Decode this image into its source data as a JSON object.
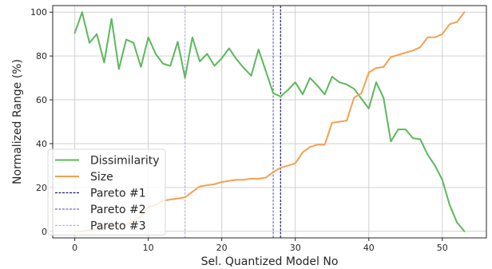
{
  "chart_data": {
    "type": "line",
    "xlabel": "Sel. Quantized Model No",
    "ylabel": "Normalized Range (%)",
    "xlim": [
      -3,
      56
    ],
    "ylim": [
      -3,
      103
    ],
    "xticks": [
      0,
      10,
      20,
      30,
      40,
      50
    ],
    "yticks": [
      0,
      20,
      40,
      60,
      80,
      100
    ],
    "grid": true,
    "legend_position": "bottom-left",
    "series": [
      {
        "name": "Dissimilarity",
        "color": "#5cb85c",
        "x": [
          0,
          1,
          2,
          3,
          4,
          5,
          6,
          7,
          8,
          9,
          10,
          11,
          12,
          13,
          14,
          15,
          16,
          17,
          18,
          19,
          20,
          21,
          22,
          23,
          24,
          25,
          26,
          27,
          28,
          29,
          30,
          31,
          32,
          33,
          34,
          35,
          36,
          37,
          38,
          39,
          40,
          41,
          42,
          43,
          44,
          45,
          46,
          47,
          48,
          49,
          50,
          51,
          52,
          53
        ],
        "values": [
          90.5,
          100,
          86,
          90,
          77,
          97,
          74,
          87.5,
          86,
          75,
          88.5,
          81,
          76.5,
          75.5,
          86.5,
          70,
          88.5,
          77.5,
          81,
          75.5,
          79,
          83.5,
          78.5,
          74.5,
          71,
          83,
          73,
          63,
          61.5,
          64.5,
          68,
          62.5,
          70,
          66.5,
          62.5,
          70.5,
          68,
          67,
          65,
          60.5,
          56,
          68,
          61,
          41,
          46.5,
          46.5,
          42.5,
          42,
          35,
          30,
          23.5,
          12,
          4,
          0
        ]
      },
      {
        "name": "Size",
        "color": "#f5a051",
        "x": [
          0,
          1,
          2,
          3,
          4,
          5,
          6,
          7,
          8,
          9,
          10,
          11,
          12,
          13,
          14,
          15,
          16,
          17,
          18,
          19,
          20,
          21,
          22,
          23,
          24,
          25,
          26,
          27,
          28,
          29,
          30,
          31,
          32,
          33,
          34,
          35,
          36,
          37,
          38,
          39,
          40,
          41,
          42,
          43,
          44,
          45,
          46,
          47,
          48,
          49,
          50,
          51,
          52,
          53
        ],
        "values": [
          0,
          0,
          0.5,
          1,
          1.5,
          2,
          2.5,
          3,
          5,
          7,
          11,
          12,
          14,
          14.5,
          15,
          15.5,
          18,
          20.5,
          21,
          21.5,
          22.5,
          23,
          23.5,
          23.5,
          24,
          24,
          24.5,
          27,
          29,
          30,
          31,
          36,
          38.5,
          39.5,
          39.5,
          49.5,
          50,
          50.5,
          61,
          63,
          72.5,
          74.5,
          75,
          79.5,
          80.5,
          81.5,
          82.5,
          84,
          88.5,
          88.5,
          90,
          94.5,
          95.5,
          100
        ]
      }
    ],
    "vlines": [
      {
        "name": "Pareto #1",
        "x": 28,
        "color": "#1f1f6e",
        "dash": "dense"
      },
      {
        "name": "Pareto #2",
        "x": 27,
        "color": "#6e6ebe",
        "dash": "dense"
      },
      {
        "name": "Pareto #3",
        "x": 15,
        "color": "#b4b4e0",
        "dash": "dense"
      }
    ]
  }
}
